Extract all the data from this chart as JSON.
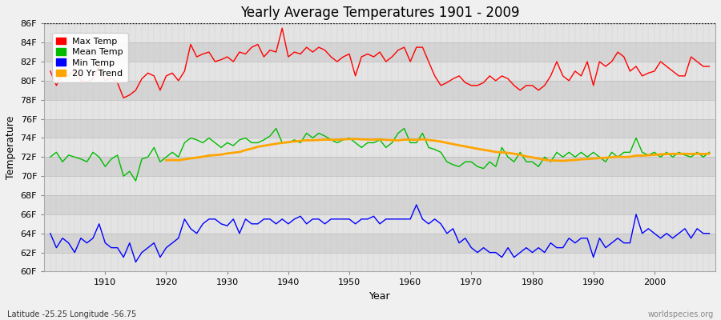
{
  "title": "Yearly Average Temperatures 1901 - 2009",
  "xlabel": "Year",
  "ylabel": "Temperature",
  "lat_lon_label": "Latitude -25.25 Longitude -56.75",
  "watermark": "worldspecies.org",
  "year_start": 1901,
  "year_end": 2009,
  "ylim": [
    60,
    86
  ],
  "yticks": [
    60,
    62,
    64,
    66,
    68,
    70,
    72,
    74,
    76,
    78,
    80,
    82,
    84,
    86
  ],
  "ytick_labels": [
    "60F",
    "62F",
    "64F",
    "66F",
    "68F",
    "70F",
    "72F",
    "74F",
    "76F",
    "78F",
    "80F",
    "82F",
    "84F",
    "86F"
  ],
  "bg_color": "#f0f0f0",
  "band_colors": [
    "#e8e8e8",
    "#d8d8d8"
  ],
  "grid_color": "#cccccc",
  "max_temp_color": "#ff0000",
  "mean_temp_color": "#00bb00",
  "min_temp_color": "#0000ff",
  "trend_color": "#ffa500",
  "legend_labels": [
    "Max Temp",
    "Mean Temp",
    "Min Temp",
    "20 Yr Trend"
  ],
  "max_temp": [
    81.0,
    79.5,
    80.8,
    80.5,
    81.2,
    80.0,
    79.8,
    80.2,
    81.5,
    80.0,
    80.3,
    79.8,
    78.2,
    78.5,
    79.0,
    80.2,
    80.8,
    80.5,
    79.0,
    80.5,
    80.8,
    80.0,
    81.0,
    83.8,
    82.5,
    82.8,
    83.0,
    82.0,
    82.2,
    82.5,
    82.0,
    83.0,
    82.8,
    83.5,
    83.8,
    82.5,
    83.2,
    83.0,
    85.5,
    82.5,
    83.0,
    82.8,
    83.5,
    83.0,
    83.5,
    83.2,
    82.5,
    82.0,
    82.5,
    82.8,
    80.5,
    82.5,
    82.8,
    82.5,
    83.0,
    82.0,
    82.5,
    83.2,
    83.5,
    82.0,
    83.5,
    83.5,
    82.0,
    80.5,
    79.5,
    79.8,
    80.2,
    80.5,
    79.8,
    79.5,
    79.5,
    79.8,
    80.5,
    80.0,
    80.5,
    80.2,
    79.5,
    79.0,
    79.5,
    79.5,
    79.0,
    79.5,
    80.5,
    82.0,
    80.5,
    80.0,
    81.0,
    80.5,
    82.0,
    79.5,
    82.0,
    81.5,
    82.0,
    83.0,
    82.5,
    81.0,
    81.5,
    80.5,
    80.8,
    81.0,
    82.0,
    81.5,
    81.0,
    80.5,
    80.5,
    82.5,
    82.0,
    81.5,
    81.5
  ],
  "mean_temp": [
    72.0,
    72.5,
    71.5,
    72.2,
    72.0,
    71.8,
    71.5,
    72.5,
    72.0,
    71.0,
    71.8,
    72.2,
    70.0,
    70.5,
    69.5,
    71.8,
    72.0,
    73.0,
    71.5,
    72.0,
    72.5,
    72.0,
    73.5,
    74.0,
    73.8,
    73.5,
    74.0,
    73.5,
    73.0,
    73.5,
    73.2,
    73.8,
    74.0,
    73.5,
    73.5,
    73.8,
    74.2,
    75.0,
    73.5,
    73.5,
    73.8,
    73.5,
    74.5,
    74.0,
    74.5,
    74.2,
    73.8,
    73.5,
    73.8,
    74.0,
    73.5,
    73.0,
    73.5,
    73.5,
    73.8,
    73.0,
    73.5,
    74.5,
    75.0,
    73.5,
    73.5,
    74.5,
    73.0,
    72.8,
    72.5,
    71.5,
    71.2,
    71.0,
    71.5,
    71.5,
    71.0,
    70.8,
    71.5,
    71.0,
    73.0,
    72.0,
    71.5,
    72.5,
    71.5,
    71.5,
    71.0,
    72.0,
    71.5,
    72.5,
    72.0,
    72.5,
    72.0,
    72.5,
    72.0,
    72.5,
    72.0,
    71.5,
    72.5,
    72.0,
    72.5,
    72.5,
    74.0,
    72.5,
    72.2,
    72.5,
    72.0,
    72.5,
    72.0,
    72.5,
    72.2,
    72.0,
    72.5,
    72.0,
    72.5
  ],
  "min_temp": [
    64.0,
    62.5,
    63.5,
    63.0,
    62.0,
    63.5,
    63.0,
    63.5,
    65.0,
    63.0,
    62.5,
    62.5,
    61.5,
    63.0,
    61.0,
    62.0,
    62.5,
    63.0,
    61.5,
    62.5,
    63.0,
    63.5,
    65.5,
    64.5,
    64.0,
    65.0,
    65.5,
    65.5,
    65.0,
    64.8,
    65.5,
    64.0,
    65.5,
    65.0,
    65.0,
    65.5,
    65.5,
    65.0,
    65.5,
    65.0,
    65.5,
    65.8,
    65.0,
    65.5,
    65.5,
    65.0,
    65.5,
    65.5,
    65.5,
    65.5,
    65.0,
    65.5,
    65.5,
    65.8,
    65.0,
    65.5,
    65.5,
    65.5,
    65.5,
    65.5,
    67.0,
    65.5,
    65.0,
    65.5,
    65.0,
    64.0,
    64.5,
    63.0,
    63.5,
    62.5,
    62.0,
    62.5,
    62.0,
    62.0,
    61.5,
    62.5,
    61.5,
    62.0,
    62.5,
    62.0,
    62.5,
    62.0,
    63.0,
    62.5,
    62.5,
    63.5,
    63.0,
    63.5,
    63.5,
    61.5,
    63.5,
    62.5,
    63.0,
    63.5,
    63.0,
    63.0,
    66.0,
    64.0,
    64.5,
    64.0,
    63.5,
    64.0,
    63.5,
    64.0,
    64.5,
    63.5,
    64.5,
    64.0,
    64.0
  ]
}
